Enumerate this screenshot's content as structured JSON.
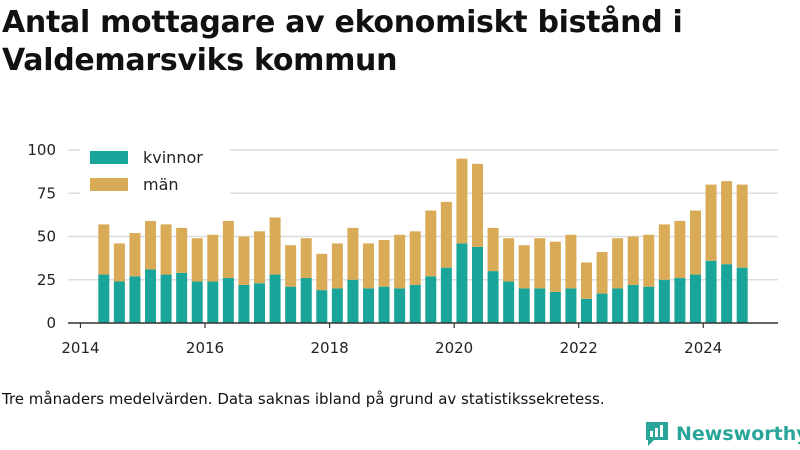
{
  "title": "Antal mottagare av ekonomiskt bistånd i Valdemarsviks kommun",
  "footnote": "Tre månaders medelvärden. Data saknas ibland på grund av statistikssekretess.",
  "brand": {
    "name": "Newsworthy",
    "icon": "bar-chart-logo-icon",
    "color": "#2aa59a"
  },
  "chart_data": {
    "type": "bar",
    "stacked": true,
    "x_axis_ticks": [
      "2014",
      "2016",
      "2018",
      "2020",
      "2022",
      "2024"
    ],
    "y_axis_ticks": [
      "0",
      "25",
      "50",
      "75",
      "100"
    ],
    "ylim": [
      0,
      100
    ],
    "xlim": [
      2013.8,
      2025.2
    ],
    "grid": true,
    "legend_position": "top-left",
    "x": [
      2014.375,
      2014.625,
      2014.875,
      2015.125,
      2015.375,
      2015.625,
      2015.875,
      2016.125,
      2016.375,
      2016.625,
      2016.875,
      2017.125,
      2017.375,
      2017.625,
      2017.875,
      2018.125,
      2018.375,
      2018.625,
      2018.875,
      2019.125,
      2019.375,
      2019.625,
      2019.875,
      2020.125,
      2020.375,
      2020.625,
      2020.875,
      2021.125,
      2021.375,
      2021.625,
      2021.875,
      2022.125,
      2022.375,
      2022.625,
      2022.875,
      2023.125,
      2023.375,
      2023.625,
      2023.875,
      2024.125,
      2024.375,
      2024.625
    ],
    "series": [
      {
        "name": "kvinnor",
        "color": "#1aa59a",
        "values": [
          28,
          24,
          27,
          31,
          28,
          29,
          24,
          24,
          26,
          22,
          23,
          28,
          21,
          26,
          19,
          20,
          25,
          20,
          21,
          20,
          22,
          27,
          32,
          46,
          44,
          30,
          24,
          20,
          20,
          18,
          20,
          14,
          17,
          20,
          22,
          21,
          25,
          26,
          28,
          36,
          34,
          32
        ]
      },
      {
        "name": "män",
        "color": "#d9ab57",
        "values": [
          29,
          22,
          25,
          28,
          29,
          26,
          25,
          27,
          33,
          28,
          30,
          33,
          24,
          23,
          21,
          26,
          30,
          26,
          27,
          31,
          31,
          38,
          38,
          49,
          48,
          25,
          25,
          25,
          29,
          29,
          31,
          21,
          24,
          29,
          28,
          30,
          32,
          33,
          37,
          44,
          48,
          48
        ]
      }
    ]
  }
}
